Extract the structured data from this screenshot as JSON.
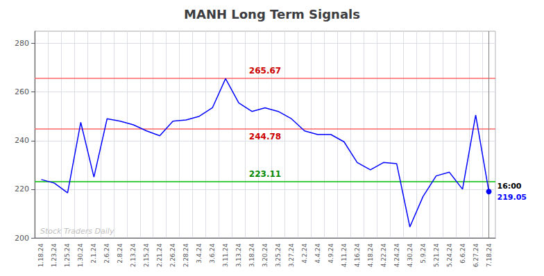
{
  "chart_data": {
    "type": "line",
    "title": "MANH Long Term Signals",
    "categories": [
      "1.18.24",
      "1.23.24",
      "1.25.24",
      "1.30.24",
      "2.1.24",
      "2.6.24",
      "2.8.24",
      "2.13.24",
      "2.15.24",
      "2.21.24",
      "2.26.24",
      "2.28.24",
      "3.4.24",
      "3.6.24",
      "3.11.24",
      "3.13.24",
      "3.18.24",
      "3.20.24",
      "3.25.24",
      "3.27.24",
      "4.2.24",
      "4.4.24",
      "4.9.24",
      "4.11.24",
      "4.16.24",
      "4.18.24",
      "4.22.24",
      "4.24.24",
      "4.30.24",
      "5.9.24",
      "5.21.24",
      "5.24.24",
      "6.6.24",
      "6.27.24",
      "7.18.24"
    ],
    "values": [
      224.0,
      222.5,
      218.5,
      247.5,
      225.0,
      249.0,
      248.0,
      246.5,
      244.0,
      242.0,
      248.0,
      248.5,
      250.0,
      253.5,
      265.5,
      255.5,
      252.0,
      253.5,
      252.0,
      249.0,
      244.0,
      242.5,
      242.5,
      239.5,
      231.0,
      228.0,
      231.0,
      230.5,
      204.5,
      217.0,
      225.5,
      227.0,
      220.0,
      250.5,
      219.05
    ],
    "color": "blue",
    "ylim": [
      200,
      285
    ],
    "yticks": [
      200,
      220,
      240,
      260,
      280
    ],
    "grid": true,
    "reference_lines": [
      {
        "value": 265.67,
        "label": "265.67",
        "color": "#ff6666",
        "label_color": "#cc0000",
        "label_side": "above"
      },
      {
        "value": 244.78,
        "label": "244.78",
        "color": "#ff6666",
        "label_color": "#cc0000",
        "label_side": "below"
      },
      {
        "value": 223.11,
        "label": "223.11",
        "color": "#00bb00",
        "label_color": "#008800",
        "label_side": "above"
      }
    ],
    "annotations": [
      {
        "text": "16:00",
        "color": "black"
      },
      {
        "text": "219.05",
        "color": "blue"
      }
    ],
    "watermark": "Stock Traders Daily"
  }
}
